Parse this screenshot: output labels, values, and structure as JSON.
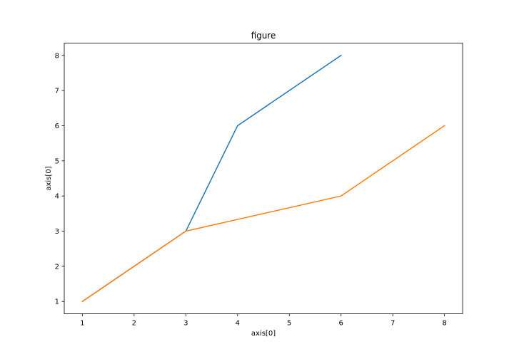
{
  "chart_data": {
    "type": "line",
    "title": "figure",
    "xlabel": "axis[0]",
    "ylabel": "axis[0]",
    "xlim": [
      0.65,
      8.35
    ],
    "ylim": [
      0.65,
      8.35
    ],
    "xticks": [
      1,
      2,
      3,
      4,
      5,
      6,
      7,
      8
    ],
    "yticks": [
      1,
      2,
      3,
      4,
      5,
      6,
      7,
      8
    ],
    "grid": false,
    "series": [
      {
        "color": "#1f77b4",
        "x": [
          1,
          2,
          3,
          4,
          6
        ],
        "y": [
          1,
          2,
          3,
          6,
          8
        ]
      },
      {
        "color": "#ff7f0e",
        "x": [
          1,
          2,
          3,
          6,
          8
        ],
        "y": [
          1,
          2,
          3,
          4,
          6
        ]
      }
    ]
  }
}
